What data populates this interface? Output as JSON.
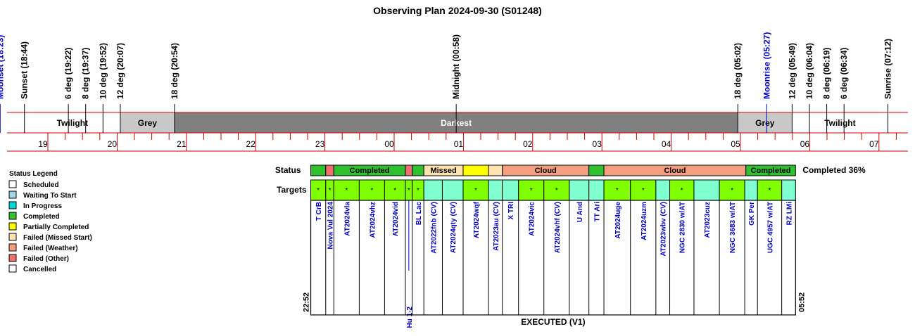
{
  "title": "Observing Plan 2024-09-30 (S01248)",
  "events": [
    {
      "label": "Moonset (18:23)",
      "color": "#0000cc",
      "hour": 18.383
    },
    {
      "label": "Sunset (18:44)",
      "color": "#000000",
      "hour": 18.733
    },
    {
      "label": "6 deg (19:22)",
      "color": "#000000",
      "hour": 19.367
    },
    {
      "label": "8 deg (19:37)",
      "color": "#000000",
      "hour": 19.617
    },
    {
      "label": "10 deg (19:52)",
      "color": "#000000",
      "hour": 19.867
    },
    {
      "label": "12 deg (20:07)",
      "color": "#000000",
      "hour": 20.117
    },
    {
      "label": "18 deg (20:54)",
      "color": "#000000",
      "hour": 20.9
    },
    {
      "label": "Midnight (00:58)",
      "color": "#000000",
      "hour": 24.967
    },
    {
      "label": "18 deg (05:02)",
      "color": "#000000",
      "hour": 29.033
    },
    {
      "label": "Moonrise (05:27)",
      "color": "#0000cc",
      "hour": 29.45
    },
    {
      "label": "12 deg (05:49)",
      "color": "#000000",
      "hour": 29.817
    },
    {
      "label": "10 deg (06:04)",
      "color": "#000000",
      "hour": 30.067
    },
    {
      "label": "8 deg (06:19)",
      "color": "#000000",
      "hour": 30.317
    },
    {
      "label": "6 deg (06:34)",
      "color": "#000000",
      "hour": 30.567
    },
    {
      "label": "Sunrise (07:12)",
      "color": "#000000",
      "hour": 31.2
    }
  ],
  "twilight_bands": [
    {
      "label": "Twilight",
      "start": 18.733,
      "end": 20.117,
      "fill": "#ffffff",
      "text_color": "#000000"
    },
    {
      "label": "Grey",
      "start": 20.117,
      "end": 20.9,
      "fill": "#c8c8c8",
      "text_color": "#000000"
    },
    {
      "label": "Darkest",
      "start": 20.9,
      "end": 29.033,
      "fill": "#808080",
      "text_color": "#ffffff"
    },
    {
      "label": "Grey",
      "start": 29.033,
      "end": 29.817,
      "fill": "#c8c8c8",
      "text_color": "#000000"
    },
    {
      "label": "Twilight",
      "start": 29.817,
      "end": 31.2,
      "fill": "#ffffff",
      "text_color": "#000000"
    }
  ],
  "hour_ticks": [
    "19",
    "20",
    "21",
    "22",
    "23",
    "00",
    "01",
    "02",
    "03",
    "04",
    "05",
    "06",
    "07"
  ],
  "status_label": "Status",
  "targets_label": "Targets",
  "summary": "Completed 36%",
  "status_segments": [
    {
      "label": "",
      "status": "completed",
      "start": 22.867,
      "end": 23.083
    },
    {
      "label": "",
      "status": "failed_other",
      "start": 23.083,
      "end": 23.2
    },
    {
      "label": "Completed",
      "status": "completed",
      "start": 23.2,
      "end": 24.233
    },
    {
      "label": "",
      "status": "failed_other",
      "start": 24.233,
      "end": 24.333
    },
    {
      "label": "",
      "status": "completed",
      "start": 24.333,
      "end": 24.5
    },
    {
      "label": "Missed",
      "status": "failed_missed",
      "start": 24.5,
      "end": 25.067
    },
    {
      "label": "",
      "status": "partial",
      "start": 25.067,
      "end": 25.433
    },
    {
      "label": "",
      "status": "failed_missed",
      "start": 25.433,
      "end": 25.633
    },
    {
      "label": "Cloud",
      "status": "failed_weather",
      "start": 25.633,
      "end": 26.883
    },
    {
      "label": "",
      "status": "completed",
      "start": 26.883,
      "end": 27.1
    },
    {
      "label": "Cloud",
      "status": "failed_weather",
      "start": 27.1,
      "end": 29.15
    },
    {
      "label": "Completed",
      "status": "completed",
      "start": 29.15,
      "end": 29.867
    }
  ],
  "targets": [
    {
      "name": "T CrB",
      "start": 22.867,
      "end": 23.083,
      "status": "completed",
      "mark": "*"
    },
    {
      "name": "Nova Vul 2024",
      "start": 23.083,
      "end": 23.2,
      "status": "completed",
      "mark": "*"
    },
    {
      "name": "AT2024vla",
      "start": 23.2,
      "end": 23.567,
      "status": "completed",
      "mark": "*"
    },
    {
      "name": "AT2024vhz",
      "start": 23.567,
      "end": 23.933,
      "status": "completed",
      "mark": "*"
    },
    {
      "name": "AT2024vid",
      "start": 23.933,
      "end": 24.233,
      "status": "completed",
      "mark": "*"
    },
    {
      "name": "Hu 1-2",
      "start": 24.233,
      "end": 24.333,
      "status": "completed",
      "mark": "*"
    },
    {
      "name": "BL Lac",
      "start": 24.333,
      "end": 24.5,
      "status": "completed",
      "mark": "*"
    },
    {
      "name": "AT2022fnb (CV)",
      "start": 24.5,
      "end": 24.767,
      "status": "waiting",
      "mark": ""
    },
    {
      "name": "AT2024qty (CV)",
      "start": 24.767,
      "end": 25.067,
      "status": "waiting",
      "mark": ""
    },
    {
      "name": "AT2024wqf",
      "start": 25.067,
      "end": 25.433,
      "status": "completed",
      "mark": "*"
    },
    {
      "name": "AT2023au (CV)",
      "start": 25.433,
      "end": 25.633,
      "status": "waiting",
      "mark": ""
    },
    {
      "name": "X TRI",
      "start": 25.633,
      "end": 25.867,
      "status": "waiting",
      "mark": ""
    },
    {
      "name": "AT2024vic",
      "start": 25.867,
      "end": 26.233,
      "status": "completed",
      "mark": "*"
    },
    {
      "name": "AT2024vhf (CV)",
      "start": 26.233,
      "end": 26.6,
      "status": "completed",
      "mark": "*"
    },
    {
      "name": "U And",
      "start": 26.6,
      "end": 26.883,
      "status": "waiting",
      "mark": ""
    },
    {
      "name": "TT Ari",
      "start": 26.883,
      "end": 27.1,
      "status": "waiting",
      "mark": ""
    },
    {
      "name": "AT2024uge",
      "start": 27.1,
      "end": 27.483,
      "status": "completed",
      "mark": "*"
    },
    {
      "name": "AT2024uzm",
      "start": 27.483,
      "end": 27.85,
      "status": "completed",
      "mark": "*"
    },
    {
      "name": "AT2023wbv (CV)",
      "start": 27.85,
      "end": 28.05,
      "status": "waiting",
      "mark": ""
    },
    {
      "name": "NGC 2830 w/AT",
      "start": 28.05,
      "end": 28.4,
      "status": "completed",
      "mark": "*"
    },
    {
      "name": "AT2023cuz",
      "start": 28.4,
      "end": 28.767,
      "status": "waiting",
      "mark": ""
    },
    {
      "name": "NGC 3683 w/AT",
      "start": 28.767,
      "end": 29.133,
      "status": "completed",
      "mark": "*"
    },
    {
      "name": "GK Per",
      "start": 29.133,
      "end": 29.317,
      "status": "waiting",
      "mark": ""
    },
    {
      "name": "UGC 4957 w/AT",
      "start": 29.317,
      "end": 29.667,
      "status": "completed",
      "mark": "*"
    },
    {
      "name": "RZ LMi",
      "start": 29.667,
      "end": 29.867,
      "status": "waiting",
      "mark": ""
    }
  ],
  "start_time": "22:52",
  "end_time": "05:52",
  "footer": "EXECUTED (V1)",
  "legend": {
    "title": "Status Legend",
    "items": [
      {
        "label": "Scheduled",
        "color": "#ffffff"
      },
      {
        "label": "Waiting To Start",
        "color": "#a0d8e8"
      },
      {
        "label": "In Progress",
        "color": "#00d8d8"
      },
      {
        "label": "Completed",
        "color": "#30c030"
      },
      {
        "label": "Partially Completed",
        "color": "#ffff00"
      },
      {
        "label": "Failed (Missed Start)",
        "color": "#ffe4b0"
      },
      {
        "label": "Failed (Weather)",
        "color": "#f4a080"
      },
      {
        "label": "Failed (Other)",
        "color": "#f07070"
      },
      {
        "label": "Cancelled",
        "color": "#ffffff"
      }
    ]
  },
  "colors": {
    "completed": "#30c030",
    "partial": "#ffff00",
    "failed_missed": "#ffe4b0",
    "failed_weather": "#f4a080",
    "failed_other": "#f07070",
    "target_completed": "#80ff00",
    "target_waiting": "#80ffd0",
    "axis_red": "#cc0000",
    "target_text": "#0000cc"
  }
}
